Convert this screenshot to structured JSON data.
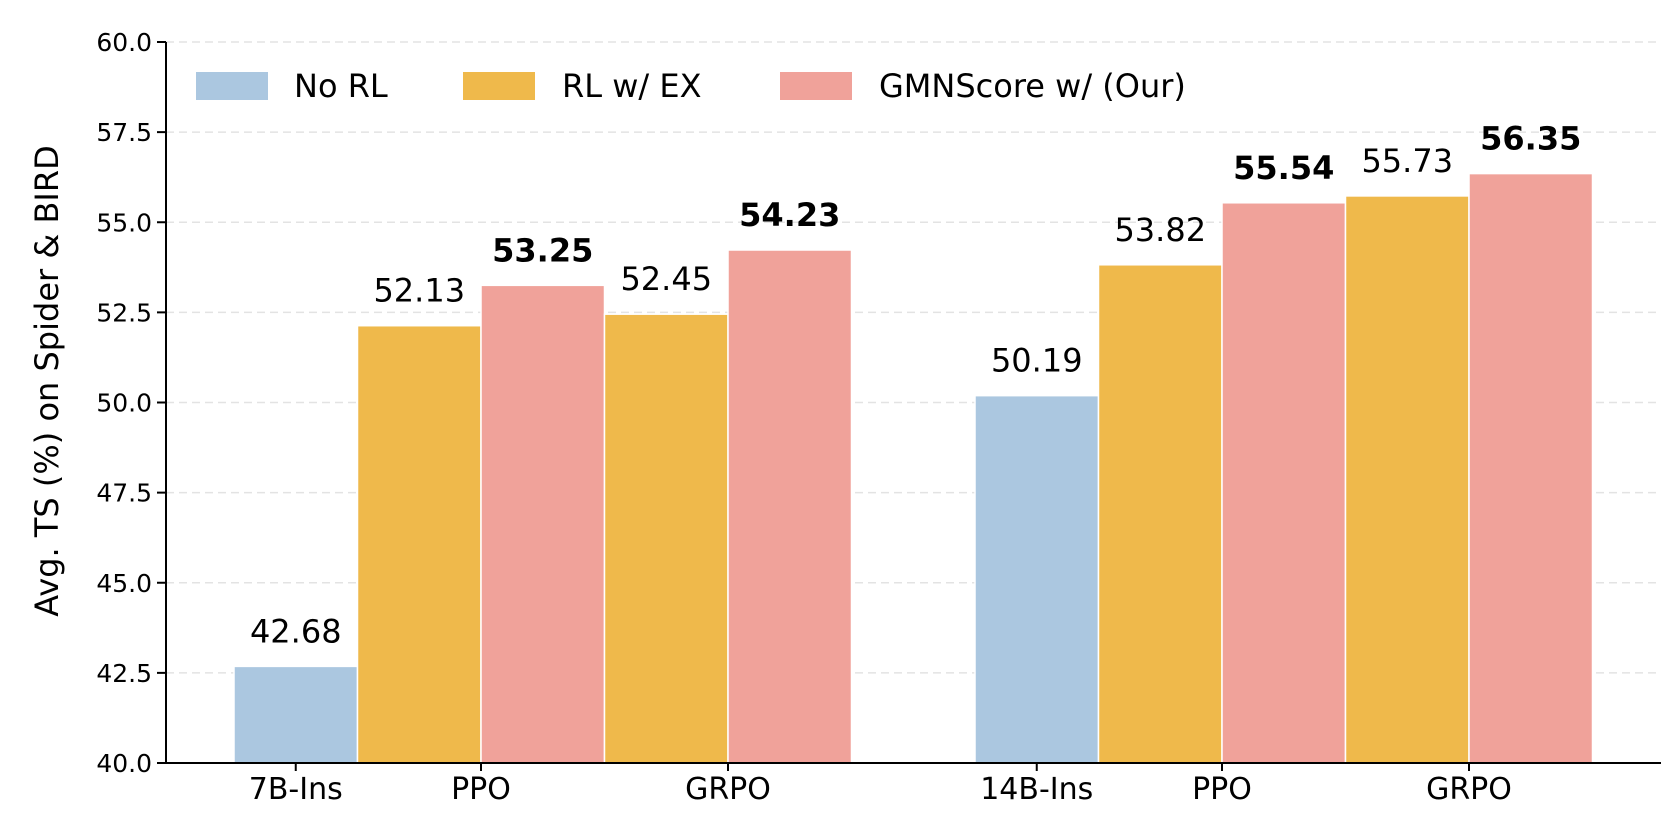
{
  "chart_data": {
    "type": "bar",
    "title": "",
    "ylabel": "Avg. TS (%) on Spider & BIRD",
    "xlabel": "",
    "ylim": [
      40.0,
      60.0
    ],
    "yticks": [
      "40.0",
      "42.5",
      "45.0",
      "47.5",
      "50.0",
      "52.5",
      "55.0",
      "57.5",
      "60.0"
    ],
    "grid": "horizontal dashed",
    "legend_position": "top-left",
    "series": [
      {
        "name": "No RL",
        "color": "#abc7e0"
      },
      {
        "name": "RL w/ EX",
        "color": "#efb94b"
      },
      {
        "name": "GMNScore w/ (Our)",
        "color": "#f0a29a"
      }
    ],
    "groups": [
      {
        "bars": [
          {
            "series": "No RL",
            "value": 42.68,
            "label": "42.68",
            "bold": false
          },
          {
            "series": "RL w/ EX",
            "value": 52.13,
            "label": "52.13",
            "bold": false
          },
          {
            "series": "GMNScore w/ (Our)",
            "value": 53.25,
            "label": "53.25",
            "bold": true
          },
          {
            "series": "RL w/ EX",
            "value": 52.45,
            "label": "52.45",
            "bold": false
          },
          {
            "series": "GMNScore w/ (Our)",
            "value": 54.23,
            "label": "54.23",
            "bold": true
          }
        ],
        "categories": [
          "7B-Ins",
          "PPO",
          "GRPO"
        ]
      },
      {
        "bars": [
          {
            "series": "No RL",
            "value": 50.19,
            "label": "50.19",
            "bold": false
          },
          {
            "series": "RL w/ EX",
            "value": 53.82,
            "label": "53.82",
            "bold": false
          },
          {
            "series": "GMNScore w/ (Our)",
            "value": 55.54,
            "label": "55.54",
            "bold": true
          },
          {
            "series": "RL w/ EX",
            "value": 55.73,
            "label": "55.73",
            "bold": false
          },
          {
            "series": "GMNScore w/ (Our)",
            "value": 56.35,
            "label": "56.35",
            "bold": true
          }
        ],
        "categories": [
          "14B-Ins",
          "PPO",
          "GRPO"
        ]
      }
    ]
  }
}
